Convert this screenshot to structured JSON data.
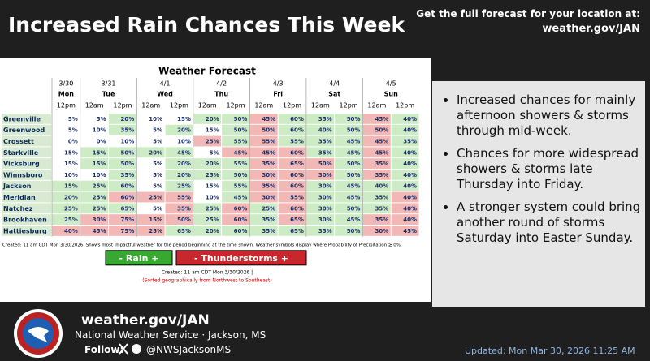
{
  "header": {
    "title": "Increased Rain Chances This Week",
    "cta": "Get the full forecast for your location at:",
    "url": "weather.gov/JAN"
  },
  "table": {
    "title": "Weather Forecast",
    "days": [
      {
        "date": "3/30",
        "day": "Mon",
        "times": [
          "12pm"
        ]
      },
      {
        "date": "3/31",
        "day": "Tue",
        "times": [
          "12am",
          "12pm"
        ]
      },
      {
        "date": "4/1",
        "day": "Wed",
        "times": [
          "12am",
          "12pm"
        ]
      },
      {
        "date": "4/2",
        "day": "Thu",
        "times": [
          "12am",
          "12pm"
        ]
      },
      {
        "date": "4/3",
        "day": "Fri",
        "times": [
          "12am",
          "12pm"
        ]
      },
      {
        "date": "4/4",
        "day": "Sat",
        "times": [
          "12am",
          "12pm"
        ]
      },
      {
        "date": "4/5",
        "day": "Sun",
        "times": [
          "12am",
          "12pm"
        ]
      }
    ],
    "rows": [
      {
        "city": "Greenville",
        "values": [
          "5%",
          "5%",
          "20%",
          "10%",
          "15%",
          "20%",
          "50%",
          "45%",
          "60%",
          "35%",
          "50%",
          "45%",
          "40%"
        ],
        "colors": [
          "#fff",
          "#fff",
          "#cdebc5",
          "#fff",
          "#fff",
          "#cdebc5",
          "#cdebc5",
          "#f2b8b5",
          "#cdebc5",
          "#cdebc5",
          "#cdebc5",
          "#f2b8b5",
          "#cdebc5"
        ]
      },
      {
        "city": "Greenwood",
        "values": [
          "5%",
          "10%",
          "35%",
          "5%",
          "20%",
          "15%",
          "50%",
          "50%",
          "60%",
          "40%",
          "50%",
          "50%",
          "40%"
        ],
        "colors": [
          "#fff",
          "#fff",
          "#cdebc5",
          "#fff",
          "#cdebc5",
          "#fff",
          "#cdebc5",
          "#f2b8b5",
          "#cdebc5",
          "#cdebc5",
          "#cdebc5",
          "#f2b8b5",
          "#cdebc5"
        ]
      },
      {
        "city": "Crossett",
        "values": [
          "0%",
          "0%",
          "10%",
          "5%",
          "10%",
          "25%",
          "55%",
          "55%",
          "55%",
          "35%",
          "45%",
          "45%",
          "35%"
        ],
        "colors": [
          "#fff",
          "#fff",
          "#fff",
          "#fff",
          "#fff",
          "#f2b8b5",
          "#cdebc5",
          "#f2b8b5",
          "#cdebc5",
          "#cdebc5",
          "#cdebc5",
          "#f2b8b5",
          "#cdebc5"
        ]
      },
      {
        "city": "Starkville",
        "values": [
          "15%",
          "15%",
          "50%",
          "20%",
          "45%",
          "5%",
          "45%",
          "45%",
          "60%",
          "35%",
          "45%",
          "45%",
          "40%"
        ],
        "colors": [
          "#fff",
          "#cdebc5",
          "#cdebc5",
          "#cdebc5",
          "#cdebc5",
          "#fff",
          "#f2b8b5",
          "#f2b8b5",
          "#f2b8b5",
          "#cdebc5",
          "#cdebc5",
          "#f2b8b5",
          "#cdebc5"
        ]
      },
      {
        "city": "Vicksburg",
        "values": [
          "15%",
          "15%",
          "50%",
          "5%",
          "20%",
          "20%",
          "55%",
          "35%",
          "65%",
          "50%",
          "50%",
          "35%",
          "40%"
        ],
        "colors": [
          "#fff",
          "#cdebc5",
          "#cdebc5",
          "#fff",
          "#cdebc5",
          "#cdebc5",
          "#cdebc5",
          "#f2b8b5",
          "#f2b8b5",
          "#f2b8b5",
          "#cdebc5",
          "#f2b8b5",
          "#cdebc5"
        ]
      },
      {
        "city": "Winnsboro",
        "values": [
          "10%",
          "10%",
          "35%",
          "5%",
          "20%",
          "25%",
          "50%",
          "30%",
          "60%",
          "30%",
          "50%",
          "35%",
          "40%"
        ],
        "colors": [
          "#fff",
          "#fff",
          "#cdebc5",
          "#fff",
          "#cdebc5",
          "#cdebc5",
          "#cdebc5",
          "#f2b8b5",
          "#f2b8b5",
          "#f2b8b5",
          "#cdebc5",
          "#f2b8b5",
          "#cdebc5"
        ]
      },
      {
        "city": "Jackson",
        "values": [
          "15%",
          "25%",
          "60%",
          "5%",
          "25%",
          "15%",
          "55%",
          "35%",
          "60%",
          "30%",
          "45%",
          "40%",
          "40%"
        ],
        "colors": [
          "#cdebc5",
          "#cdebc5",
          "#cdebc5",
          "#fff",
          "#cdebc5",
          "#fff",
          "#cdebc5",
          "#f2b8b5",
          "#f2b8b5",
          "#cdebc5",
          "#cdebc5",
          "#cdebc5",
          "#cdebc5"
        ]
      },
      {
        "city": "Meridian",
        "values": [
          "20%",
          "25%",
          "60%",
          "25%",
          "55%",
          "10%",
          "45%",
          "30%",
          "55%",
          "30%",
          "45%",
          "35%",
          "40%"
        ],
        "colors": [
          "#cdebc5",
          "#cdebc5",
          "#f2b8b5",
          "#f2b8b5",
          "#f2b8b5",
          "#fff",
          "#cdebc5",
          "#f2b8b5",
          "#f2b8b5",
          "#cdebc5",
          "#cdebc5",
          "#cdebc5",
          "#f2b8b5"
        ]
      },
      {
        "city": "Natchez",
        "values": [
          "25%",
          "25%",
          "65%",
          "5%",
          "35%",
          "25%",
          "60%",
          "25%",
          "60%",
          "30%",
          "50%",
          "35%",
          "40%"
        ],
        "colors": [
          "#cdebc5",
          "#cdebc5",
          "#cdebc5",
          "#fff",
          "#f2b8b5",
          "#cdebc5",
          "#f2b8b5",
          "#cdebc5",
          "#f2b8b5",
          "#cdebc5",
          "#cdebc5",
          "#cdebc5",
          "#f2b8b5"
        ]
      },
      {
        "city": "Brookhaven",
        "values": [
          "25%",
          "30%",
          "75%",
          "15%",
          "50%",
          "25%",
          "60%",
          "35%",
          "65%",
          "30%",
          "45%",
          "35%",
          "40%"
        ],
        "colors": [
          "#cdebc5",
          "#f2b8b5",
          "#f2b8b5",
          "#f2b8b5",
          "#f2b8b5",
          "#cdebc5",
          "#f2b8b5",
          "#cdebc5",
          "#f2b8b5",
          "#cdebc5",
          "#cdebc5",
          "#f2b8b5",
          "#f2b8b5"
        ]
      },
      {
        "city": "Hattiesburg",
        "values": [
          "40%",
          "45%",
          "75%",
          "25%",
          "65%",
          "20%",
          "60%",
          "35%",
          "65%",
          "35%",
          "50%",
          "30%",
          "45%"
        ],
        "colors": [
          "#f2b8b5",
          "#f2b8b5",
          "#f2b8b5",
          "#f2b8b5",
          "#cdebc5",
          "#cdebc5",
          "#cdebc5",
          "#cdebc5",
          "#cdebc5",
          "#cdebc5",
          "#cdebc5",
          "#f2b8b5",
          "#f2b8b5"
        ]
      }
    ],
    "note": "Created: 11 am CDT Mon 3/30/2026. Shows most impactful weather for the period beginning at the time shown. Weather symbols display where Probability of Precipitation ≥ 0%.",
    "legend": [
      {
        "label": "- Rain +",
        "color": "#38a832"
      },
      {
        "label": "- Thunderstorms +",
        "color": "#c8282d"
      }
    ],
    "created": "Created: 11 am CDT Mon 3/30/2026 |",
    "sorted": "(Sorted geographically from Northwest to Southeast)"
  },
  "bullets": [
    "Increased chances for mainly afternoon showers & storms through mid-week.",
    "Chances for more widespread showers & storms late Thursday into Friday.",
    "A stronger system could bring another round of storms Saturday into Easter Sunday."
  ],
  "footer": {
    "site": "weather.gov/JAN",
    "office": "National Weather Service · Jackson, MS",
    "follow": "Follow:",
    "handle": "@NWSJacksonMS",
    "updated": "Updated: Mon Mar 30, 2026 11:25 AM"
  }
}
